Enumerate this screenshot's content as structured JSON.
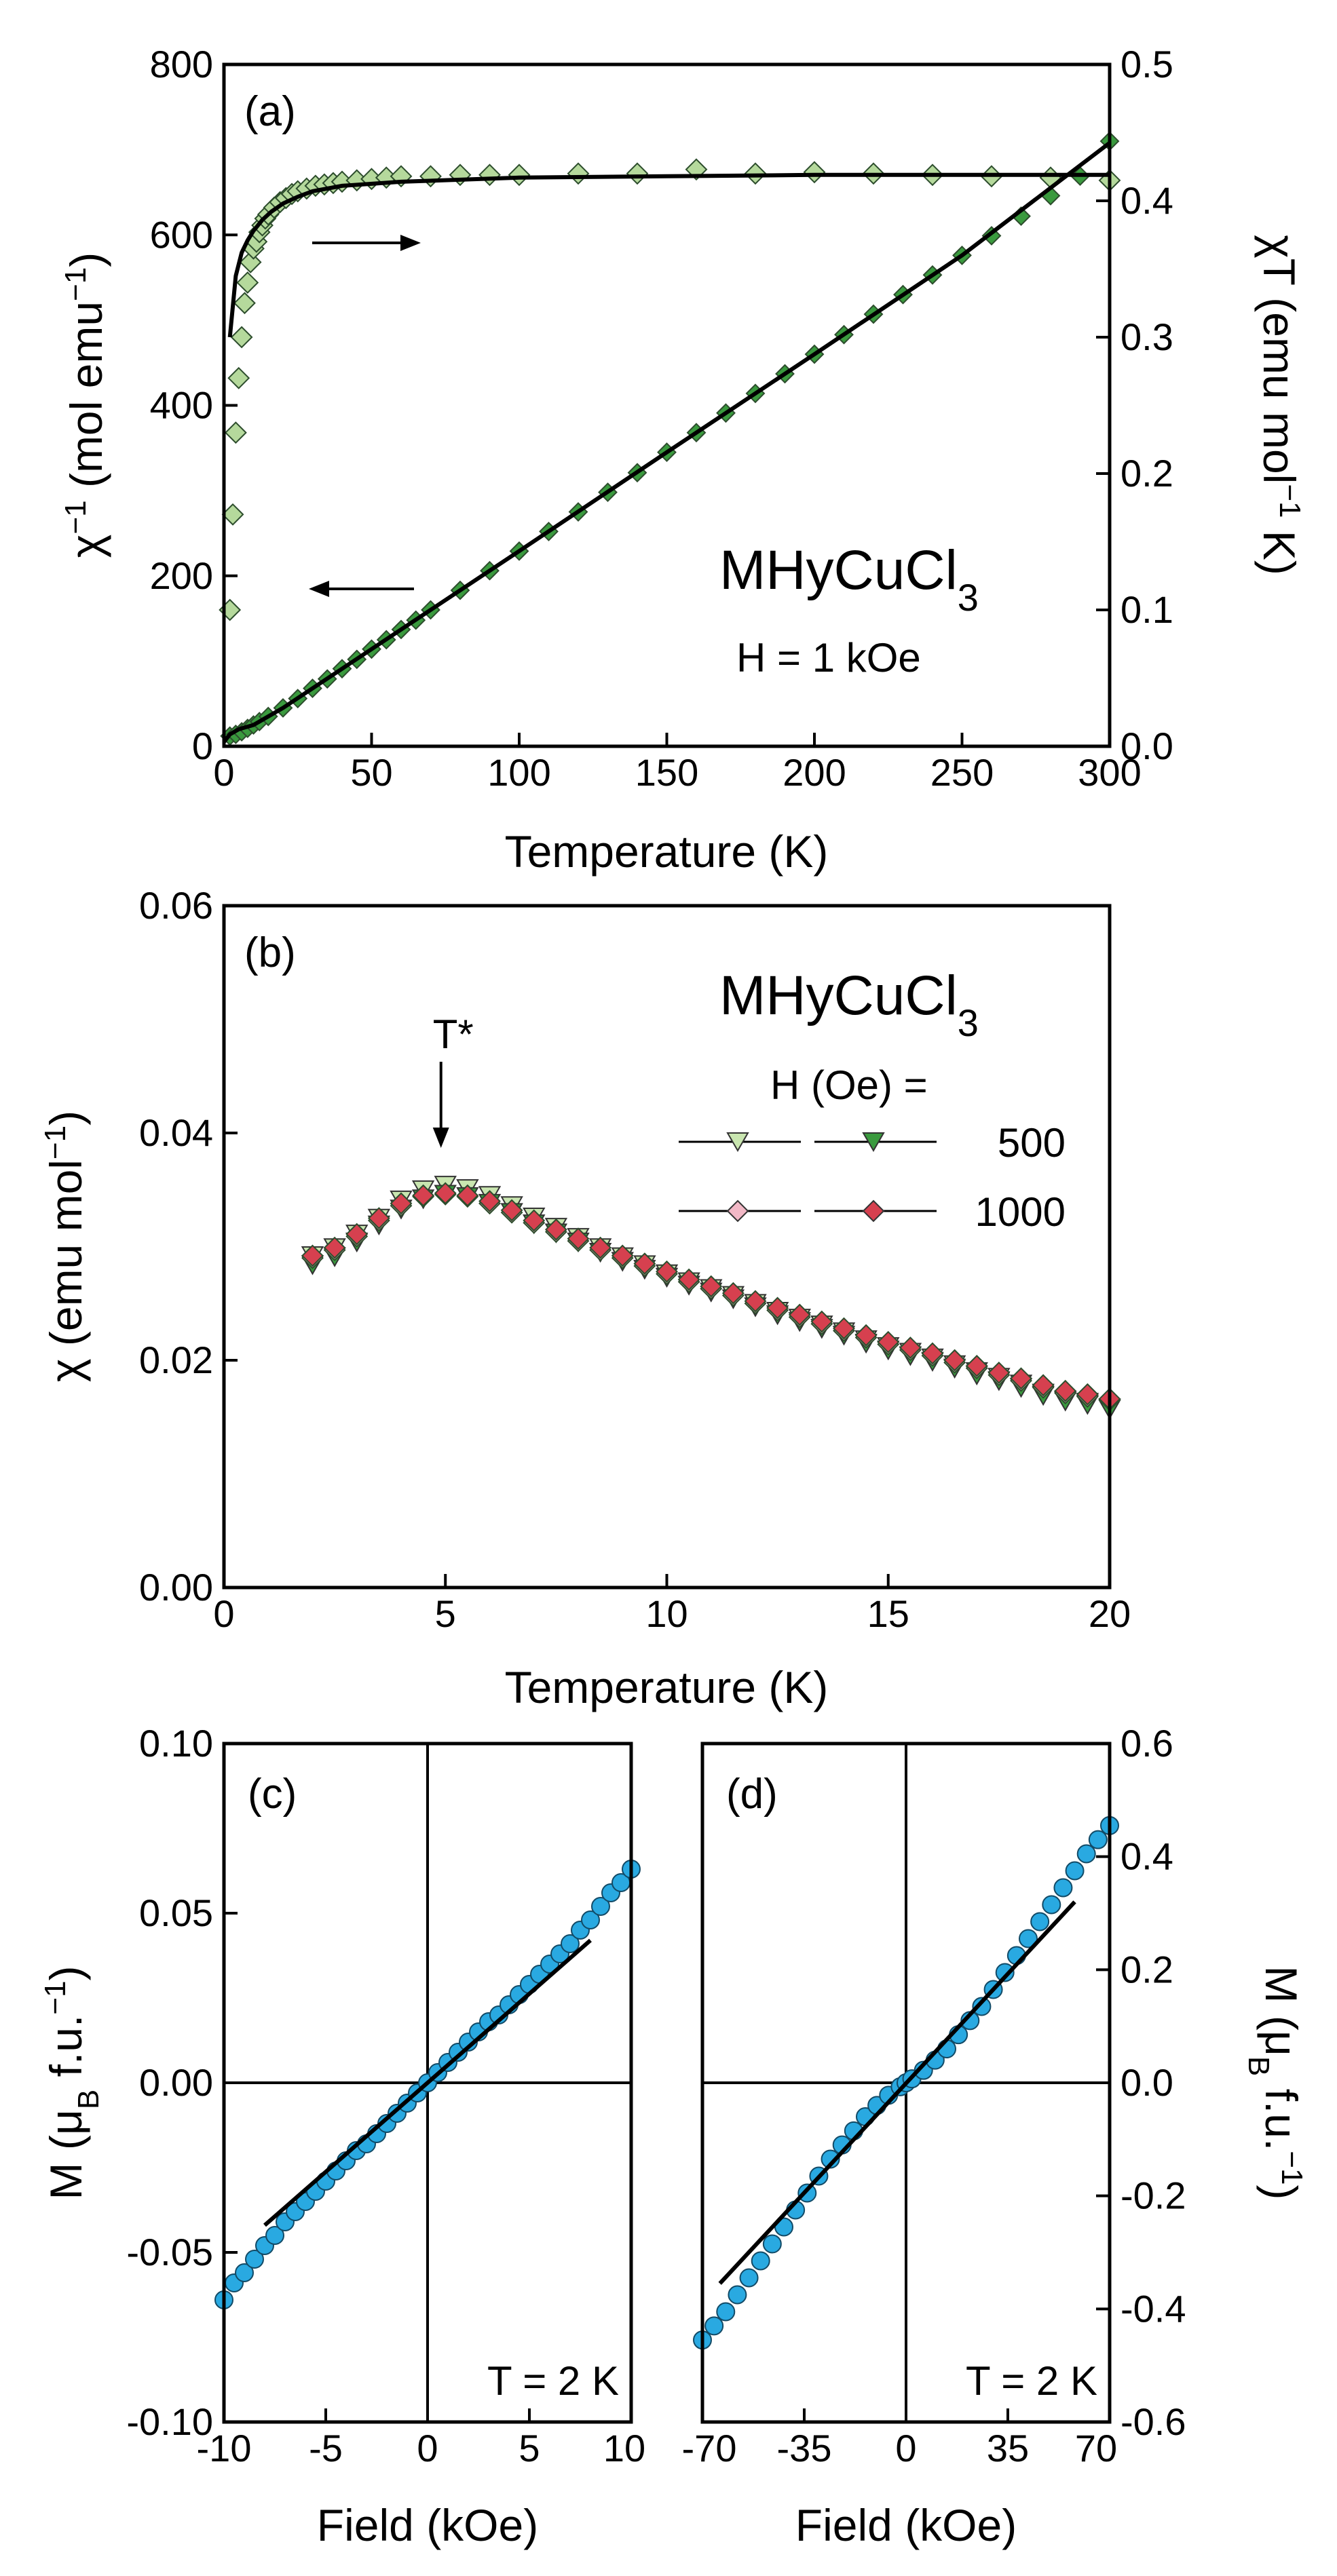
{
  "chart_data": [
    {
      "id": "a",
      "type": "scatter",
      "panel_label": "(a)",
      "xlabel": "Temperature (K)",
      "ylabel_left": {
        "main": "χ",
        "sup": "−1",
        "rest": " (mol emu",
        "sup2": "−1",
        "end": ")"
      },
      "ylabel_right": {
        "main": "χT (emu mol",
        "sup": "−1",
        "end": " K)"
      },
      "xlim": [
        0,
        300
      ],
      "ylim_left": [
        0,
        800
      ],
      "ylim_right": [
        0.0,
        0.5
      ],
      "xticks": [
        "0",
        "50",
        "100",
        "150",
        "200",
        "250",
        "300"
      ],
      "yticks_left": [
        "0",
        "200",
        "400",
        "600",
        "800"
      ],
      "yticks_right": [
        "0.0",
        "0.1",
        "0.2",
        "0.3",
        "0.4",
        "0.5"
      ],
      "compound": {
        "base": "MHyCuCl",
        "sub": "3"
      },
      "field_label": "H = 1 kOe",
      "colors": {
        "chiT": "#b5d99c",
        "invchi": "#3a9a3e"
      },
      "series": [
        {
          "name": "chi_inverse",
          "axis": "left",
          "marker": "diamond",
          "x": [
            2,
            4,
            6,
            8,
            10,
            12,
            15,
            20,
            25,
            30,
            35,
            40,
            45,
            50,
            55,
            60,
            65,
            70,
            80,
            90,
            100,
            110,
            120,
            130,
            140,
            150,
            160,
            170,
            180,
            190,
            200,
            210,
            220,
            230,
            240,
            250,
            260,
            270,
            280,
            290,
            300
          ],
          "y": [
            12,
            14,
            17,
            21,
            25,
            29,
            35,
            45,
            56,
            68,
            79,
            91,
            102,
            114,
            125,
            137,
            148,
            160,
            183,
            206,
            229,
            252,
            275,
            298,
            321,
            345,
            368,
            391,
            414,
            437,
            460,
            483,
            507,
            530,
            553,
            576,
            599,
            622,
            646,
            669,
            710
          ]
        },
        {
          "name": "chiT",
          "axis": "right",
          "marker": "diamond",
          "x": [
            2,
            3,
            4,
            5,
            6,
            7,
            8,
            9,
            10,
            11,
            12,
            13,
            14,
            15,
            17,
            19,
            21,
            23,
            25,
            28,
            31,
            34,
            37,
            40,
            45,
            50,
            55,
            60,
            70,
            80,
            90,
            100,
            120,
            140,
            160,
            180,
            200,
            220,
            240,
            260,
            280,
            300
          ],
          "y": [
            0.1,
            0.17,
            0.23,
            0.27,
            0.3,
            0.325,
            0.34,
            0.355,
            0.365,
            0.37,
            0.377,
            0.382,
            0.387,
            0.39,
            0.395,
            0.399,
            0.402,
            0.405,
            0.407,
            0.409,
            0.411,
            0.412,
            0.413,
            0.414,
            0.415,
            0.416,
            0.417,
            0.418,
            0.418,
            0.419,
            0.419,
            0.419,
            0.42,
            0.42,
            0.423,
            0.42,
            0.421,
            0.42,
            0.419,
            0.418,
            0.417,
            0.415
          ]
        }
      ],
      "fits": [
        {
          "axis": "left",
          "x": [
            0,
            2,
            5,
            10,
            20,
            40,
            60,
            100,
            150,
            200,
            250,
            300
          ],
          "y": [
            5,
            14,
            20,
            25,
            45,
            91,
            137,
            229,
            345,
            460,
            576,
            708
          ]
        },
        {
          "axis": "right",
          "x": [
            2,
            4,
            6,
            8,
            10,
            13,
            16,
            20,
            25,
            30,
            40,
            60,
            100,
            150,
            200,
            300
          ],
          "y": [
            0.3,
            0.345,
            0.362,
            0.371,
            0.378,
            0.386,
            0.392,
            0.398,
            0.403,
            0.407,
            0.411,
            0.414,
            0.417,
            0.418,
            0.419,
            0.419
          ]
        }
      ]
    },
    {
      "id": "b",
      "type": "scatter",
      "panel_label": "(b)",
      "xlabel": "Temperature (K)",
      "ylabel": {
        "main": "χ (emu mol",
        "sup": "−1",
        "end": ")"
      },
      "xlim": [
        0,
        20
      ],
      "ylim": [
        0.0,
        0.06
      ],
      "xticks": [
        "0",
        "5",
        "10",
        "15",
        "20"
      ],
      "yticks": [
        "0.00",
        "0.02",
        "0.04",
        "0.06"
      ],
      "compound": {
        "base": "MHyCuCl",
        "sub": "3"
      },
      "annotation": "T*",
      "annotation_x": 4.9,
      "legend_title": "H (Oe) =",
      "legend": [
        {
          "label": "500",
          "colors": [
            "#c9e6b0",
            "#3a9a3e"
          ],
          "marker": "triangle-down"
        },
        {
          "label": "1000",
          "colors": [
            "#f2b8c6",
            "#d6404f"
          ],
          "marker": "diamond"
        }
      ],
      "x": [
        2.0,
        2.5,
        3.0,
        3.5,
        4.0,
        4.5,
        5.0,
        5.5,
        6.0,
        6.5,
        7.0,
        7.5,
        8.0,
        8.5,
        9.0,
        9.5,
        10.0,
        10.5,
        11.0,
        11.5,
        12.0,
        12.5,
        13.0,
        13.5,
        14.0,
        14.5,
        15.0,
        15.5,
        16.0,
        16.5,
        17.0,
        17.5,
        18.0,
        18.5,
        19.0,
        19.5,
        20.0
      ],
      "series": [
        {
          "name": "500 Oe (open)",
          "marker": "triangle-down",
          "color": "#c9e6b0",
          "values": [
            0.0293,
            0.03,
            0.0312,
            0.0326,
            0.0342,
            0.0351,
            0.0355,
            0.0352,
            0.0346,
            0.0337,
            0.0327,
            0.0318,
            0.0309,
            0.03,
            0.0292,
            0.0285,
            0.0277,
            0.027,
            0.0264,
            0.0258,
            0.0251,
            0.0244,
            0.0238,
            0.0232,
            0.0226,
            0.0219,
            0.0213,
            0.0208,
            0.0203,
            0.0197,
            0.0191,
            0.0186,
            0.018,
            0.0172,
            0.0166,
            0.0164,
            0.0159
          ]
        },
        {
          "name": "500 Oe (filled)",
          "marker": "triangle-down",
          "color": "#3a9a3e",
          "values": [
            0.0285,
            0.0292,
            0.0305,
            0.032,
            0.0334,
            0.0343,
            0.0347,
            0.0345,
            0.0339,
            0.0331,
            0.0321,
            0.0313,
            0.0305,
            0.0296,
            0.0288,
            0.0281,
            0.0274,
            0.0267,
            0.0261,
            0.0255,
            0.0248,
            0.0241,
            0.0235,
            0.0229,
            0.0223,
            0.0216,
            0.021,
            0.0205,
            0.02,
            0.0194,
            0.0188,
            0.0183,
            0.0177,
            0.017,
            0.0165,
            0.0162,
            0.0158
          ]
        },
        {
          "name": "1000 Oe (open)",
          "marker": "diamond",
          "color": "#f2b8c6",
          "values": [
            0.029,
            0.0297,
            0.0309,
            0.0323,
            0.0336,
            0.0344,
            0.0346,
            0.0344,
            0.0338,
            0.033,
            0.0321,
            0.0313,
            0.0305,
            0.0297,
            0.029,
            0.0283,
            0.0276,
            0.0269,
            0.0263,
            0.0257,
            0.025,
            0.0244,
            0.0238,
            0.0232,
            0.0226,
            0.022,
            0.0214,
            0.0209,
            0.0204,
            0.0198,
            0.0193,
            0.0187,
            0.0182,
            0.0176,
            0.0171,
            0.0168,
            0.0165
          ]
        },
        {
          "name": "1000 Oe (filled)",
          "marker": "diamond",
          "color": "#d6404f",
          "values": [
            0.0292,
            0.0299,
            0.0311,
            0.0325,
            0.0338,
            0.0345,
            0.0347,
            0.0345,
            0.034,
            0.0332,
            0.0323,
            0.0315,
            0.0307,
            0.0299,
            0.0292,
            0.0285,
            0.0278,
            0.0271,
            0.0265,
            0.0259,
            0.0252,
            0.0246,
            0.024,
            0.0234,
            0.0228,
            0.0222,
            0.0216,
            0.0211,
            0.0206,
            0.02,
            0.0195,
            0.0189,
            0.0184,
            0.0178,
            0.0173,
            0.017,
            0.0166
          ]
        }
      ]
    },
    {
      "id": "c",
      "type": "scatter",
      "panel_label": "(c)",
      "xlabel": "Field (kOe)",
      "ylabel": {
        "main": "M (μ",
        "sub": "B",
        "rest": " f.u.",
        "sup": "−1",
        "end": ")"
      },
      "xlim": [
        -10,
        10
      ],
      "ylim": [
        -0.1,
        0.1
      ],
      "xticks": [
        "-10",
        "-5",
        "0",
        "5",
        "10"
      ],
      "yticks": [
        "-0.10",
        "-0.05",
        "0.00",
        "0.05",
        "0.10"
      ],
      "annotation": "T = 2 K",
      "color": "#29a9e1",
      "x": [
        -10.0,
        -9.5,
        -9.0,
        -8.5,
        -8.0,
        -7.5,
        -7.0,
        -6.5,
        -6.0,
        -5.5,
        -5.0,
        -4.5,
        -4.0,
        -3.5,
        -3.0,
        -2.5,
        -2.0,
        -1.5,
        -1.0,
        -0.5,
        0.0,
        0.5,
        1.0,
        1.5,
        2.0,
        2.5,
        3.0,
        3.5,
        4.0,
        4.5,
        5.0,
        5.5,
        6.0,
        6.5,
        7.0,
        7.5,
        8.0,
        8.5,
        9.0,
        9.5,
        10.0
      ],
      "values": [
        -0.064,
        -0.059,
        -0.056,
        -0.052,
        -0.048,
        -0.045,
        -0.041,
        -0.038,
        -0.035,
        -0.032,
        -0.029,
        -0.026,
        -0.023,
        -0.02,
        -0.018,
        -0.015,
        -0.012,
        -0.009,
        -0.006,
        -0.003,
        0.0,
        0.003,
        0.006,
        0.009,
        0.012,
        0.015,
        0.018,
        0.02,
        0.023,
        0.026,
        0.029,
        0.032,
        0.035,
        0.038,
        0.041,
        0.045,
        0.048,
        0.052,
        0.056,
        0.059,
        0.063
      ],
      "fit": {
        "x": [
          -8,
          8
        ],
        "y": [
          -0.042,
          0.042
        ]
      }
    },
    {
      "id": "d",
      "type": "scatter",
      "panel_label": "(d)",
      "xlabel": "Field (kOe)",
      "ylabel": {
        "main": "M (μ",
        "sub": "B",
        "rest": " f.u.",
        "sup": "−1",
        "end": ")"
      },
      "xlim": [
        -70,
        70
      ],
      "ylim": [
        -0.6,
        0.6
      ],
      "xticks": [
        "-70",
        "-35",
        "0",
        "35",
        "70"
      ],
      "yticks": [
        "-0.6",
        "-0.4",
        "-0.2",
        "0.0",
        "0.2",
        "0.4",
        "0.6"
      ],
      "annotation": "T = 2 K",
      "color": "#29a9e1",
      "x": [
        -70,
        -66,
        -62,
        -58,
        -54,
        -50,
        -46,
        -42,
        -38,
        -34,
        -30,
        -26,
        -22,
        -18,
        -14,
        -10,
        -6,
        -2,
        0,
        2,
        6,
        10,
        14,
        18,
        22,
        26,
        30,
        34,
        38,
        42,
        46,
        50,
        54,
        58,
        62,
        66,
        70
      ],
      "values": [
        -0.455,
        -0.43,
        -0.405,
        -0.375,
        -0.345,
        -0.315,
        -0.285,
        -0.255,
        -0.225,
        -0.195,
        -0.165,
        -0.135,
        -0.11,
        -0.085,
        -0.06,
        -0.04,
        -0.022,
        -0.007,
        0.0,
        0.007,
        0.022,
        0.04,
        0.06,
        0.085,
        0.11,
        0.135,
        0.165,
        0.195,
        0.225,
        0.255,
        0.285,
        0.315,
        0.345,
        0.375,
        0.405,
        0.43,
        0.455
      ],
      "fit": {
        "x": [
          -64,
          58
        ],
        "y": [
          -0.355,
          0.32
        ]
      }
    }
  ]
}
